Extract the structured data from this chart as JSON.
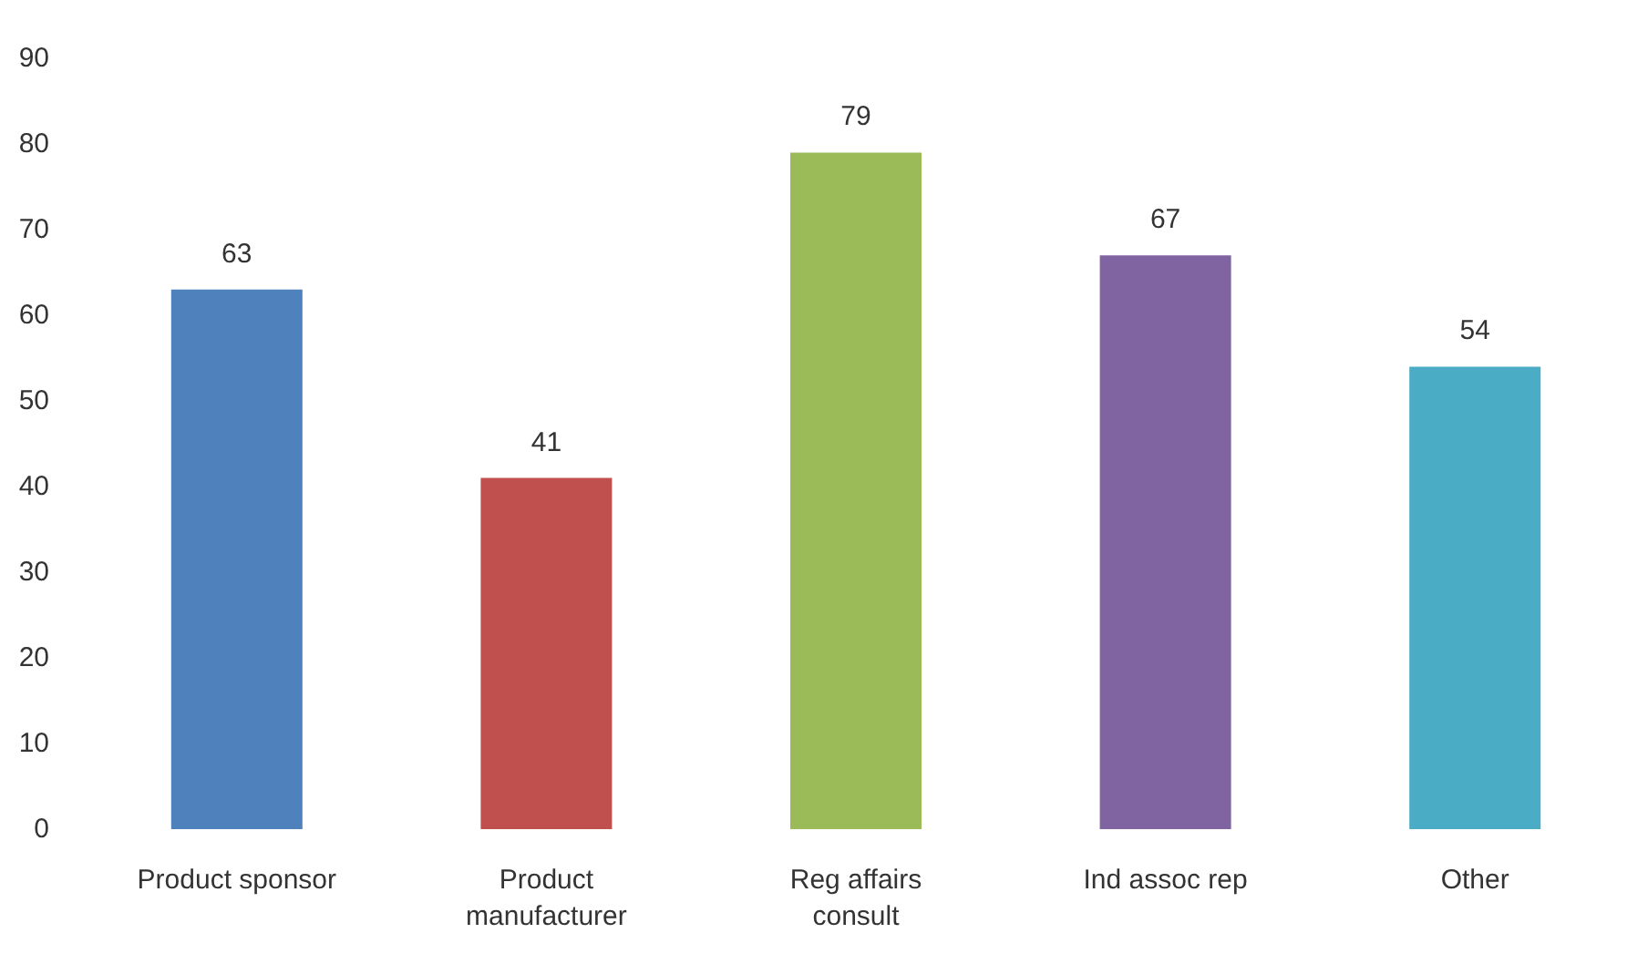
{
  "chart_data": {
    "type": "bar",
    "categories": [
      "Product sponsor",
      "Product\nmanufacturer",
      "Reg affairs\nconsult",
      "Ind assoc rep",
      "Other"
    ],
    "values": [
      63,
      41,
      79,
      67,
      54
    ],
    "colors": [
      "#4f81bd",
      "#c0504d",
      "#9bbb59",
      "#8064a2",
      "#4bacc6"
    ],
    "ylim": [
      0,
      90
    ],
    "yticks": [
      0,
      10,
      20,
      30,
      40,
      50,
      60,
      70,
      80,
      90
    ],
    "data_labels": true,
    "grid": false
  }
}
